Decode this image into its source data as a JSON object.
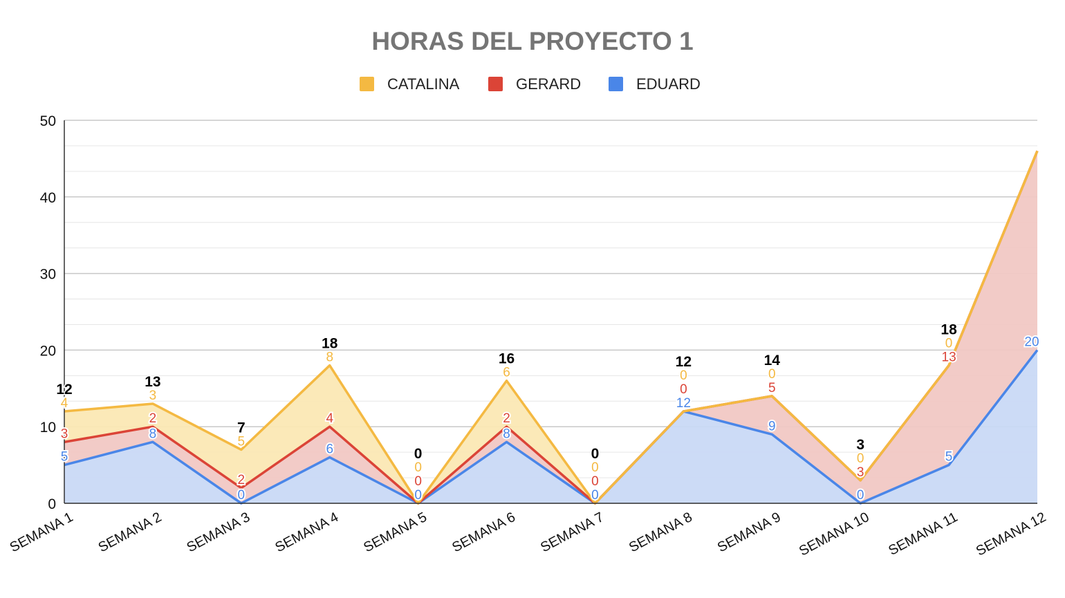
{
  "chart_data": {
    "type": "area",
    "stacked": true,
    "title": "HORAS DEL PROYECTO 1",
    "legend_position": "top",
    "categories": [
      "SEMANA 1",
      "SEMANA 2",
      "SEMANA 3",
      "SEMANA 4",
      "SEMANA 5",
      "SEMANA 6",
      "SEMANA 7",
      "SEMANA 8",
      "SEMANA 9",
      "SEMANA 10",
      "SEMANA 11",
      "SEMANA 12"
    ],
    "series": [
      {
        "name": "EDUARD",
        "color": "#4a86e8",
        "fill": "#c9d9f5",
        "values": [
          5,
          8,
          0,
          6,
          0,
          8,
          0,
          12,
          9,
          0,
          5,
          20
        ]
      },
      {
        "name": "GERARD",
        "color": "#db4437",
        "fill": "#f1c8c4",
        "values": [
          3,
          2,
          2,
          4,
          0,
          2,
          0,
          0,
          5,
          3,
          13,
          26
        ]
      },
      {
        "name": "CATALINA",
        "color": "#f4b942",
        "fill": "#fbe8b4",
        "values": [
          4,
          3,
          5,
          8,
          0,
          6,
          0,
          0,
          0,
          0,
          0,
          0
        ]
      }
    ],
    "legend_order": [
      "CATALINA",
      "GERARD",
      "EDUARD"
    ],
    "totals": [
      12,
      13,
      7,
      18,
      0,
      16,
      0,
      12,
      14,
      3,
      18,
      46
    ],
    "totals_shown": [
      true,
      true,
      true,
      true,
      true,
      true,
      true,
      true,
      true,
      true,
      true,
      false
    ],
    "series_labels_shown_last": [
      true,
      false,
      false
    ],
    "ylim": [
      0,
      50
    ],
    "yticks": [
      0,
      10,
      20,
      30,
      40,
      50
    ],
    "grid": true
  }
}
